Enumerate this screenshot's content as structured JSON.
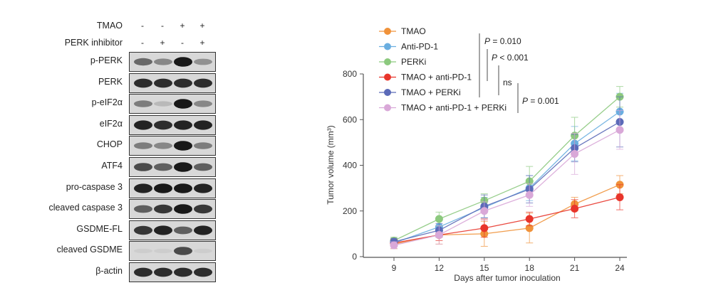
{
  "blot": {
    "conditions": [
      {
        "label": "TMAO",
        "signs": [
          "-",
          "-",
          "+",
          "+"
        ]
      },
      {
        "label": "PERK inhibitor",
        "signs": [
          "-",
          "+",
          "-",
          "+"
        ]
      }
    ],
    "rows": [
      {
        "label": "p-PERK",
        "band_intensity": [
          0.55,
          0.4,
          0.95,
          0.35
        ]
      },
      {
        "label": "PERK",
        "band_intensity": [
          0.85,
          0.85,
          0.85,
          0.85
        ]
      },
      {
        "label": "p-eIF2α",
        "band_intensity": [
          0.45,
          0.15,
          0.95,
          0.4
        ]
      },
      {
        "label": "eIF2α",
        "band_intensity": [
          0.9,
          0.85,
          0.9,
          0.9
        ]
      },
      {
        "label": "CHOP",
        "band_intensity": [
          0.45,
          0.4,
          0.95,
          0.45
        ]
      },
      {
        "label": "ATF4",
        "band_intensity": [
          0.7,
          0.6,
          0.95,
          0.6
        ]
      },
      {
        "label": "pro-caspase 3",
        "band_intensity": [
          0.9,
          0.95,
          0.95,
          0.9
        ]
      },
      {
        "label": "cleaved caspase 3",
        "band_intensity": [
          0.6,
          0.8,
          0.95,
          0.8
        ]
      },
      {
        "label": "GSDME-FL",
        "band_intensity": [
          0.8,
          0.9,
          0.6,
          0.9
        ]
      },
      {
        "label": "cleaved GSDME",
        "band_intensity": [
          0.05,
          0.05,
          0.7,
          0.05
        ]
      },
      {
        "label": "β-actin",
        "band_intensity": [
          0.85,
          0.85,
          0.85,
          0.85
        ]
      }
    ]
  },
  "chart_data": {
    "type": "line",
    "xlabel": "Days after tumor inoculation",
    "ylabel": "Tumor volume (mm³)",
    "x": [
      9,
      12,
      15,
      18,
      21,
      24
    ],
    "xticks": [
      "9",
      "12",
      "15",
      "18",
      "21",
      "24"
    ],
    "yticks": [
      "0",
      "200",
      "400",
      "600",
      "800"
    ],
    "ylim": [
      0,
      800
    ],
    "legend_position": "top-left",
    "series": [
      {
        "name": "TMAO",
        "color": "#f0923a",
        "values": [
          55,
          95,
          100,
          125,
          230,
          315
        ],
        "err": [
          20,
          40,
          55,
          65,
          30,
          40
        ]
      },
      {
        "name": "Anti-PD-1",
        "color": "#6aaee0",
        "values": [
          60,
          130,
          215,
          300,
          495,
          635
        ],
        "err": [
          15,
          35,
          45,
          55,
          75,
          80
        ]
      },
      {
        "name": "PERKi",
        "color": "#8cc97e",
        "values": [
          70,
          165,
          245,
          330,
          530,
          700
        ],
        "err": [
          15,
          30,
          30,
          65,
          80,
          45
        ]
      },
      {
        "name": "TMAO + anti-PD-1",
        "color": "#e8352b",
        "values": [
          60,
          95,
          125,
          165,
          210,
          260
        ],
        "err": [
          15,
          25,
          40,
          30,
          40,
          55
        ]
      },
      {
        "name": "TMAO + PERKi",
        "color": "#5b6ab8",
        "values": [
          65,
          115,
          220,
          295,
          475,
          590
        ],
        "err": [
          15,
          30,
          50,
          60,
          60,
          110
        ]
      },
      {
        "name": "TMAO + anti-PD-1 + PERKi",
        "color": "#d9a8d8",
        "values": [
          50,
          95,
          200,
          270,
          450,
          555
        ],
        "err": [
          15,
          40,
          40,
          50,
          90,
          85
        ]
      }
    ],
    "annotations": [
      "P = 0.010",
      "P < 0.001",
      "ns",
      "P = 0.001"
    ]
  }
}
